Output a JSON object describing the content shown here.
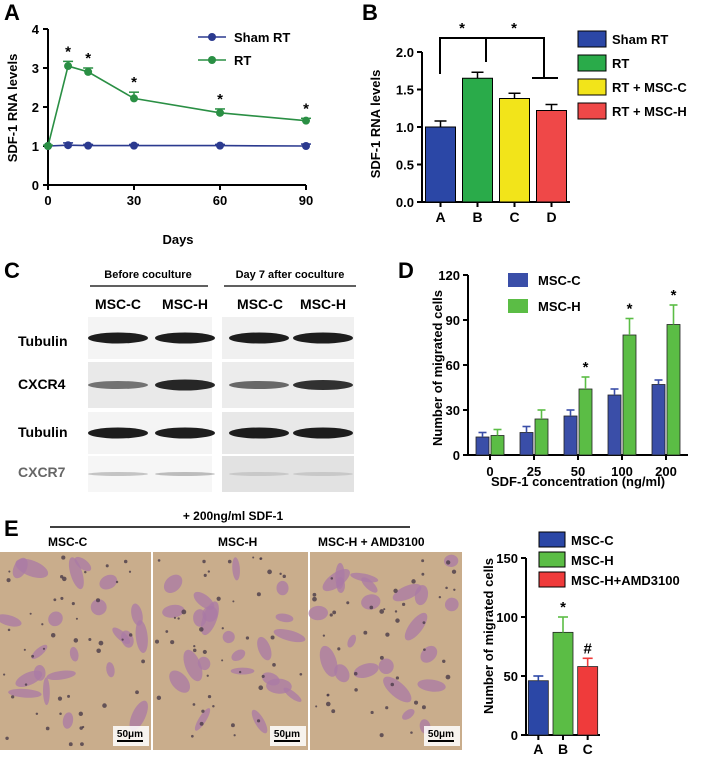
{
  "chart_data": [
    {
      "panel": "A",
      "type": "line",
      "xlabel": "Days",
      "ylabel": "SDF-1 RNA levels",
      "xlim": [
        0,
        90
      ],
      "ylim": [
        0,
        4
      ],
      "xticks": [
        0,
        30,
        60,
        90
      ],
      "yticks": [
        0,
        1,
        2,
        3,
        4
      ],
      "legend_position": "top-right",
      "series": [
        {
          "name": "Sham RT",
          "color": "#2b3a8f",
          "x": [
            0,
            7,
            14,
            30,
            60,
            90
          ],
          "y": [
            1.0,
            1.02,
            1.01,
            1.01,
            1.01,
            1.0
          ],
          "err": [
            0.02,
            0.06,
            0.03,
            0.03,
            0.03,
            0.05
          ]
        },
        {
          "name": "RT",
          "color": "#2a8f44",
          "x": [
            0,
            7,
            14,
            30,
            60,
            90
          ],
          "y": [
            1.0,
            3.05,
            2.9,
            2.22,
            1.85,
            1.65
          ],
          "err": [
            0.02,
            0.12,
            0.1,
            0.16,
            0.1,
            0.06
          ]
        }
      ],
      "annotations": [
        {
          "x": 7,
          "text": "*"
        },
        {
          "x": 14,
          "text": "*"
        },
        {
          "x": 30,
          "text": "*"
        },
        {
          "x": 60,
          "text": "*"
        },
        {
          "x": 90,
          "text": "*"
        }
      ]
    },
    {
      "panel": "B",
      "type": "bar",
      "ylabel": "SDF-1 RNA levels",
      "ylim": [
        0,
        2.0
      ],
      "yticks": [
        0.0,
        0.5,
        1.0,
        1.5,
        2.0
      ],
      "categories": [
        "A",
        "B",
        "C",
        "D"
      ],
      "values": [
        1.0,
        1.65,
        1.38,
        1.22
      ],
      "errors": [
        0.08,
        0.08,
        0.07,
        0.08
      ],
      "colors": [
        "#2b47a6",
        "#2aab4a",
        "#f2e41a",
        "#ef4848"
      ],
      "legend": [
        {
          "name": "Sham RT",
          "color": "#2b47a6"
        },
        {
          "name": "RT",
          "color": "#2aab4a"
        },
        {
          "name": "RT + MSC-C",
          "color": "#f2e41a"
        },
        {
          "name": "RT + MSC-H",
          "color": "#ef4848"
        }
      ],
      "legend_position": "right",
      "significance": [
        "*",
        "*"
      ]
    },
    {
      "panel": "D",
      "type": "bar",
      "xlabel": "SDF-1 concentration (ng/ml)",
      "ylabel": "Number of migrated cells",
      "ylim": [
        0,
        120
      ],
      "yticks": [
        0,
        30,
        60,
        90,
        120
      ],
      "categories": [
        "0",
        "25",
        "50",
        "100",
        "200"
      ],
      "legend_position": "top-left",
      "series": [
        {
          "name": "MSC-C",
          "color": "#3a4ea8",
          "values": [
            12,
            15,
            26,
            40,
            47
          ],
          "errors": [
            3,
            4,
            4,
            4,
            3
          ]
        },
        {
          "name": "MSC-H",
          "color": "#5bbd45",
          "values": [
            13,
            24,
            44,
            80,
            87
          ],
          "errors": [
            4,
            6,
            8,
            11,
            13
          ]
        }
      ],
      "annotations": [
        {
          "category": "50",
          "text": "*"
        },
        {
          "category": "100",
          "text": "*"
        },
        {
          "category": "200",
          "text": "*"
        }
      ]
    },
    {
      "panel": "E",
      "type": "bar",
      "ylabel": "Number of migrated cells",
      "ylim": [
        0,
        150
      ],
      "yticks": [
        0,
        50,
        100,
        150
      ],
      "categories": [
        "A",
        "B",
        "C"
      ],
      "values": [
        46,
        87,
        58
      ],
      "errors": [
        4,
        13,
        7
      ],
      "colors": [
        "#2b47a6",
        "#5bbd45",
        "#ef3b3b"
      ],
      "labels_above": [
        "",
        "*",
        "#"
      ],
      "legend": [
        {
          "name": "MSC-C",
          "color": "#2b47a6"
        },
        {
          "name": "MSC-H",
          "color": "#5bbd45"
        },
        {
          "name": "MSC-H+AMD3100",
          "color": "#ef3b3b"
        }
      ],
      "legend_position": "top-right"
    }
  ],
  "panel_c": {
    "label": "C",
    "header_left": "Before coculture",
    "header_right": "Day 7 after coculture",
    "sample_labels": [
      "MSC-C",
      "MSC-H",
      "MSC-C",
      "MSC-H"
    ],
    "rows": [
      "Tubulin",
      "CXCR4",
      "Tubulin",
      "CXCR7"
    ]
  },
  "panel_e": {
    "label": "E",
    "treatment": "+ 200ng/ml SDF-1",
    "image_labels": [
      "MSC-C",
      "MSC-H",
      "MSC-H + AMD3100"
    ],
    "scale_bar": "50μm"
  }
}
